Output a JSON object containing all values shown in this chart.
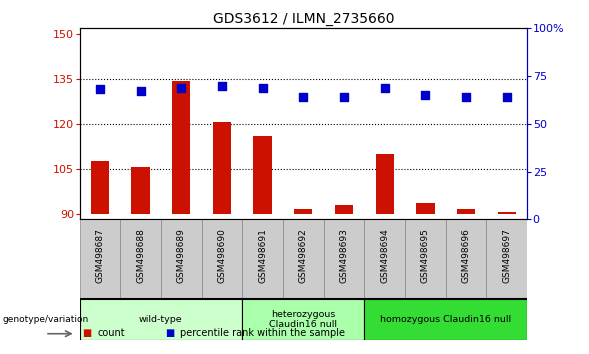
{
  "title": "GDS3612 / ILMN_2735660",
  "samples": [
    "GSM498687",
    "GSM498688",
    "GSM498689",
    "GSM498690",
    "GSM498691",
    "GSM498692",
    "GSM498693",
    "GSM498694",
    "GSM498695",
    "GSM498696",
    "GSM498697"
  ],
  "counts": [
    107.5,
    105.5,
    134.5,
    120.5,
    116.0,
    91.5,
    93.0,
    110.0,
    93.5,
    91.5,
    90.5
  ],
  "percentile_ranks": [
    68,
    67,
    69,
    70,
    69,
    64,
    64,
    69,
    65,
    64,
    64
  ],
  "ylim_left": [
    88,
    152
  ],
  "ylim_right": [
    0,
    100
  ],
  "yticks_left": [
    90,
    105,
    120,
    135,
    150
  ],
  "yticks_right": [
    0,
    25,
    50,
    75,
    100
  ],
  "ytick_labels_right": [
    "0",
    "25",
    "50",
    "75",
    "100%"
  ],
  "bar_color": "#cc1100",
  "dot_color": "#0000cc",
  "bar_bottom": 90,
  "legend_count_label": "count",
  "legend_pct_label": "percentile rank within the sample",
  "genotype_label": "genotype/variation",
  "dot_size": 35,
  "bar_width": 0.45,
  "groups": [
    {
      "label": "wild-type",
      "start": 0,
      "end": 3,
      "color": "#ccffcc"
    },
    {
      "label": "heterozygous\nClaudin16 null",
      "start": 4,
      "end": 6,
      "color": "#aaffaa"
    },
    {
      "label": "homozygous Claudin16 null",
      "start": 7,
      "end": 10,
      "color": "#33dd33"
    }
  ],
  "sample_box_color": "#cccccc",
  "sample_box_edge": "#888888"
}
